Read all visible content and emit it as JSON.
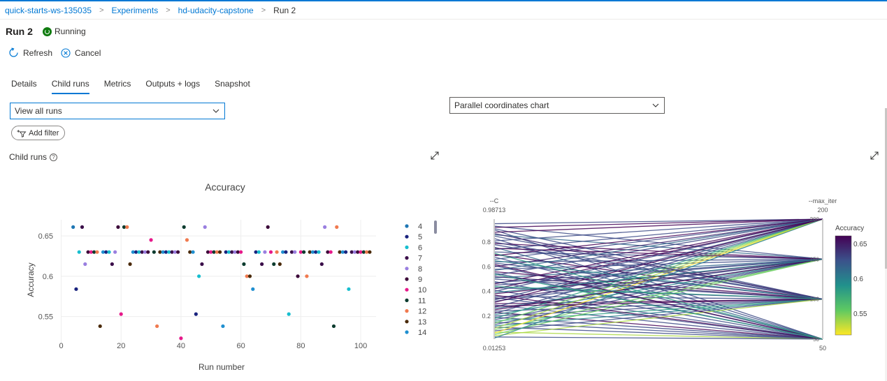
{
  "breadcrumb": {
    "items": [
      "quick-starts-ws-135035",
      "Experiments",
      "hd-udacity-capstone"
    ],
    "current": "Run 2"
  },
  "run": {
    "title": "Run 2",
    "status": "Running"
  },
  "commands": {
    "refresh": "Refresh",
    "cancel": "Cancel"
  },
  "tabs": [
    "Details",
    "Child runs",
    "Metrics",
    "Outputs + logs",
    "Snapshot"
  ],
  "active_tab": "Child runs",
  "view_select": {
    "value": "View all runs"
  },
  "chart_select": {
    "value": "Parallel coordinates chart"
  },
  "add_filter": "Add filter",
  "section_label": "Child runs",
  "help_glyph": "?",
  "colors": {
    "accent": "#0078d4",
    "running": "#107c10"
  },
  "chart_data": [
    {
      "type": "scatter",
      "title": "Accuracy",
      "xlabel": "Run number",
      "ylabel": "Accuracy",
      "xlim": [
        0,
        105
      ],
      "ylim": [
        0.515,
        0.67
      ],
      "xticks": [
        "0",
        "20",
        "40",
        "60",
        "80",
        "100"
      ],
      "yticks": [
        "0.55",
        "0.6",
        "0.65"
      ],
      "legend_position": "right",
      "legend": [
        {
          "name": "4",
          "color": "#1f77b4"
        },
        {
          "name": "5",
          "color": "#1a237e"
        },
        {
          "name": "6",
          "color": "#17becf"
        },
        {
          "name": "7",
          "color": "#3b0f4a"
        },
        {
          "name": "8",
          "color": "#9a7fe0"
        },
        {
          "name": "9",
          "color": "#3d0b3a"
        },
        {
          "name": "10",
          "color": "#e6198a"
        },
        {
          "name": "11",
          "color": "#0b3b2e"
        },
        {
          "name": "12",
          "color": "#f07a4f"
        },
        {
          "name": "13",
          "color": "#4a2a0a"
        },
        {
          "name": "14",
          "color": "#1f8fd0"
        }
      ],
      "points": [
        [
          4,
          0.661,
          "#1f77b4"
        ],
        [
          5,
          0.584,
          "#1a237e"
        ],
        [
          6,
          0.63,
          "#17becf"
        ],
        [
          7,
          0.661,
          "#3b0f4a"
        ],
        [
          8,
          0.615,
          "#9a7fe0"
        ],
        [
          9,
          0.63,
          "#3d0b3a"
        ],
        [
          10,
          0.63,
          "#e6198a"
        ],
        [
          11,
          0.63,
          "#0b3b2e"
        ],
        [
          12,
          0.63,
          "#f07a4f"
        ],
        [
          13,
          0.538,
          "#4a2a0a"
        ],
        [
          14,
          0.63,
          "#1f8fd0"
        ],
        [
          15,
          0.63,
          "#1a237e"
        ],
        [
          16,
          0.63,
          "#17becf"
        ],
        [
          17,
          0.615,
          "#3b0f4a"
        ],
        [
          18,
          0.63,
          "#9a7fe0"
        ],
        [
          19,
          0.661,
          "#3d0b3a"
        ],
        [
          20,
          0.553,
          "#e6198a"
        ],
        [
          21,
          0.661,
          "#0b3b2e"
        ],
        [
          22,
          0.661,
          "#f07a4f"
        ],
        [
          23,
          0.615,
          "#4a2a0a"
        ],
        [
          24,
          0.63,
          "#1f8fd0"
        ],
        [
          25,
          0.63,
          "#1a237e"
        ],
        [
          26,
          0.63,
          "#17becf"
        ],
        [
          27,
          0.63,
          "#3b0f4a"
        ],
        [
          28,
          0.63,
          "#9a7fe0"
        ],
        [
          29,
          0.63,
          "#3d0b3a"
        ],
        [
          30,
          0.645,
          "#e6198a"
        ],
        [
          31,
          0.63,
          "#0b3b2e"
        ],
        [
          32,
          0.538,
          "#f07a4f"
        ],
        [
          33,
          0.63,
          "#4a2a0a"
        ],
        [
          34,
          0.63,
          "#1f8fd0"
        ],
        [
          35,
          0.63,
          "#1a237e"
        ],
        [
          36,
          0.63,
          "#17becf"
        ],
        [
          37,
          0.63,
          "#3b0f4a"
        ],
        [
          38,
          0.63,
          "#9a7fe0"
        ],
        [
          39,
          0.63,
          "#3d0b3a"
        ],
        [
          40,
          0.523,
          "#e6198a"
        ],
        [
          41,
          0.661,
          "#0b3b2e"
        ],
        [
          42,
          0.645,
          "#f07a4f"
        ],
        [
          43,
          0.63,
          "#4a2a0a"
        ],
        [
          44,
          0.63,
          "#1f8fd0"
        ],
        [
          45,
          0.553,
          "#1a237e"
        ],
        [
          46,
          0.6,
          "#17becf"
        ],
        [
          47,
          0.615,
          "#3b0f4a"
        ],
        [
          48,
          0.661,
          "#9a7fe0"
        ],
        [
          49,
          0.63,
          "#3d0b3a"
        ],
        [
          50,
          0.63,
          "#e6198a"
        ],
        [
          51,
          0.63,
          "#0b3b2e"
        ],
        [
          52,
          0.63,
          "#f07a4f"
        ],
        [
          53,
          0.63,
          "#4a2a0a"
        ],
        [
          54,
          0.538,
          "#1f8fd0"
        ],
        [
          55,
          0.63,
          "#1a237e"
        ],
        [
          56,
          0.63,
          "#17becf"
        ],
        [
          57,
          0.63,
          "#3b0f4a"
        ],
        [
          58,
          0.63,
          "#9a7fe0"
        ],
        [
          59,
          0.63,
          "#3d0b3a"
        ],
        [
          60,
          0.63,
          "#e6198a"
        ],
        [
          61,
          0.615,
          "#0b3b2e"
        ],
        [
          62,
          0.6,
          "#f07a4f"
        ],
        [
          63,
          0.6,
          "#4a2a0a"
        ],
        [
          64,
          0.584,
          "#1f8fd0"
        ],
        [
          65,
          0.63,
          "#1a237e"
        ],
        [
          66,
          0.63,
          "#17becf"
        ],
        [
          67,
          0.615,
          "#3b0f4a"
        ],
        [
          68,
          0.63,
          "#9a7fe0"
        ],
        [
          69,
          0.661,
          "#3d0b3a"
        ],
        [
          70,
          0.63,
          "#e6198a"
        ],
        [
          71,
          0.615,
          "#0b3b2e"
        ],
        [
          72,
          0.63,
          "#f07a4f"
        ],
        [
          73,
          0.615,
          "#4a2a0a"
        ],
        [
          74,
          0.63,
          "#1f8fd0"
        ],
        [
          75,
          0.63,
          "#1a237e"
        ],
        [
          76,
          0.553,
          "#17becf"
        ],
        [
          77,
          0.63,
          "#3b0f4a"
        ],
        [
          78,
          0.63,
          "#9a7fe0"
        ],
        [
          79,
          0.6,
          "#3d0b3a"
        ],
        [
          80,
          0.63,
          "#e6198a"
        ],
        [
          81,
          0.63,
          "#0b3b2e"
        ],
        [
          82,
          0.6,
          "#f07a4f"
        ],
        [
          83,
          0.63,
          "#4a2a0a"
        ],
        [
          84,
          0.63,
          "#1f8fd0"
        ],
        [
          85,
          0.63,
          "#1a237e"
        ],
        [
          86,
          0.63,
          "#17becf"
        ],
        [
          87,
          0.615,
          "#3b0f4a"
        ],
        [
          88,
          0.661,
          "#9a7fe0"
        ],
        [
          89,
          0.63,
          "#3d0b3a"
        ],
        [
          90,
          0.63,
          "#e6198a"
        ],
        [
          91,
          0.538,
          "#0b3b2e"
        ],
        [
          92,
          0.661,
          "#f07a4f"
        ],
        [
          93,
          0.63,
          "#4a2a0a"
        ],
        [
          94,
          0.63,
          "#1f8fd0"
        ],
        [
          95,
          0.63,
          "#1a237e"
        ],
        [
          96,
          0.584,
          "#17becf"
        ],
        [
          97,
          0.63,
          "#3b0f4a"
        ],
        [
          98,
          0.63,
          "#9a7fe0"
        ],
        [
          99,
          0.63,
          "#3d0b3a"
        ],
        [
          100,
          0.63,
          "#e6198a"
        ],
        [
          101,
          0.63,
          "#0b3b2e"
        ],
        [
          102,
          0.63,
          "#f07a4f"
        ],
        [
          103,
          0.63,
          "#4a2a0a"
        ]
      ]
    },
    {
      "type": "parallel_coordinates",
      "axes": [
        {
          "name": "--C",
          "max_label": "0.98713",
          "min_label": "0.01253",
          "range": [
            0.01253,
            0.98713
          ],
          "ticks": [
            "0.2",
            "0.4",
            "0.6",
            "0.8"
          ]
        },
        {
          "name": "--max_iter",
          "max_label": "200",
          "min_label": "50",
          "range": [
            50,
            200
          ],
          "ticks": [
            "50",
            "100",
            "150",
            "200"
          ]
        }
      ],
      "colorbar": {
        "title": "Accuracy",
        "ticks": [
          "0.55",
          "0.6",
          "0.65"
        ],
        "range": [
          0.52,
          0.662
        ],
        "colorscale": "viridis"
      },
      "lines": [
        [
          0.95,
          200,
          0.63
        ],
        [
          0.93,
          150,
          0.63
        ],
        [
          0.91,
          100,
          0.63
        ],
        [
          0.9,
          50,
          0.63
        ],
        [
          0.88,
          200,
          0.661
        ],
        [
          0.86,
          150,
          0.615
        ],
        [
          0.85,
          100,
          0.63
        ],
        [
          0.83,
          50,
          0.63
        ],
        [
          0.81,
          200,
          0.63
        ],
        [
          0.79,
          150,
          0.661
        ],
        [
          0.78,
          100,
          0.63
        ],
        [
          0.76,
          50,
          0.615
        ],
        [
          0.74,
          200,
          0.63
        ],
        [
          0.72,
          150,
          0.63
        ],
        [
          0.7,
          100,
          0.661
        ],
        [
          0.68,
          50,
          0.63
        ],
        [
          0.66,
          200,
          0.63
        ],
        [
          0.64,
          150,
          0.63
        ],
        [
          0.63,
          100,
          0.63
        ],
        [
          0.61,
          50,
          0.63
        ],
        [
          0.6,
          200,
          0.645
        ],
        [
          0.58,
          150,
          0.63
        ],
        [
          0.56,
          100,
          0.661
        ],
        [
          0.55,
          50,
          0.63
        ],
        [
          0.53,
          200,
          0.63
        ],
        [
          0.51,
          150,
          0.615
        ],
        [
          0.5,
          100,
          0.63
        ],
        [
          0.48,
          50,
          0.63
        ],
        [
          0.46,
          200,
          0.661
        ],
        [
          0.45,
          150,
          0.63
        ],
        [
          0.43,
          100,
          0.63
        ],
        [
          0.41,
          50,
          0.63
        ],
        [
          0.4,
          200,
          0.63
        ],
        [
          0.38,
          150,
          0.661
        ],
        [
          0.36,
          100,
          0.63
        ],
        [
          0.35,
          50,
          0.63
        ],
        [
          0.33,
          200,
          0.63
        ],
        [
          0.32,
          150,
          0.63
        ],
        [
          0.3,
          100,
          0.661
        ],
        [
          0.29,
          50,
          0.63
        ],
        [
          0.27,
          200,
          0.63
        ],
        [
          0.26,
          150,
          0.615
        ],
        [
          0.24,
          100,
          0.63
        ],
        [
          0.23,
          50,
          0.661
        ],
        [
          0.22,
          200,
          0.63
        ],
        [
          0.21,
          150,
          0.6
        ],
        [
          0.2,
          100,
          0.63
        ],
        [
          0.19,
          50,
          0.63
        ],
        [
          0.18,
          200,
          0.584
        ],
        [
          0.17,
          150,
          0.63
        ],
        [
          0.16,
          100,
          0.584
        ],
        [
          0.15,
          50,
          0.63
        ],
        [
          0.14,
          200,
          0.553
        ],
        [
          0.13,
          150,
          0.63
        ],
        [
          0.12,
          100,
          0.6
        ],
        [
          0.11,
          50,
          0.63
        ],
        [
          0.1,
          200,
          0.538
        ],
        [
          0.09,
          150,
          0.553
        ],
        [
          0.08,
          100,
          0.63
        ],
        [
          0.07,
          50,
          0.538
        ],
        [
          0.06,
          200,
          0.523
        ],
        [
          0.05,
          150,
          0.553
        ],
        [
          0.04,
          100,
          0.538
        ],
        [
          0.03,
          50,
          0.63
        ],
        [
          0.02,
          200,
          0.6
        ],
        [
          0.92,
          200,
          0.661
        ],
        [
          0.87,
          100,
          0.645
        ],
        [
          0.75,
          150,
          0.661
        ],
        [
          0.69,
          200,
          0.661
        ],
        [
          0.62,
          50,
          0.661
        ],
        [
          0.57,
          200,
          0.615
        ],
        [
          0.52,
          100,
          0.645
        ],
        [
          0.47,
          150,
          0.63
        ],
        [
          0.42,
          200,
          0.661
        ],
        [
          0.37,
          50,
          0.661
        ],
        [
          0.34,
          150,
          0.645
        ],
        [
          0.31,
          200,
          0.661
        ],
        [
          0.28,
          100,
          0.661
        ],
        [
          0.25,
          150,
          0.661
        ],
        [
          0.44,
          100,
          0.584
        ],
        [
          0.39,
          150,
          0.6
        ],
        [
          0.54,
          50,
          0.584
        ],
        [
          0.65,
          100,
          0.6
        ],
        [
          0.71,
          50,
          0.584
        ],
        [
          0.8,
          100,
          0.63
        ]
      ]
    }
  ]
}
